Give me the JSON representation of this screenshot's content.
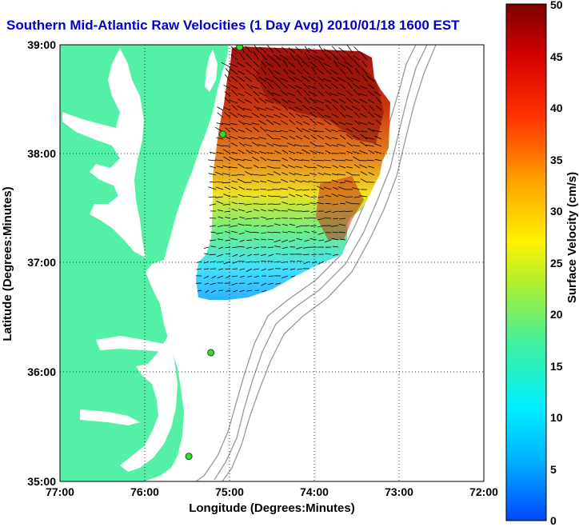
{
  "title": "Southern Mid-Atlantic Raw Velocities (1 Day Avg) 2010/01/18 1600 EST",
  "x_axis": {
    "label": "Longitude (Degrees:Minutes)",
    "ticks": [
      "77:00",
      "76:00",
      "75:00",
      "74:00",
      "73:00",
      "72:00"
    ]
  },
  "y_axis": {
    "label": "Latitude (Degrees:Minutes)",
    "ticks": [
      "39:00",
      "38:00",
      "37:00",
      "36:00",
      "35:00"
    ]
  },
  "colorbar": {
    "label": "Surface Velocity (cm/s)",
    "ticks": [
      "50",
      "45",
      "40",
      "35",
      "30",
      "25",
      "20",
      "15",
      "10",
      "5",
      "0"
    ],
    "min": 0,
    "max": 50
  },
  "colors": {
    "title": "#0000cc",
    "land": "#55f0a8",
    "water": "#ffffff",
    "isobath": "#999999"
  },
  "stations": [
    {
      "lon": -74.88,
      "lat": 38.98
    },
    {
      "lon": -75.08,
      "lat": 38.18
    },
    {
      "lon": -75.22,
      "lat": 36.18
    },
    {
      "lon": -75.48,
      "lat": 35.23
    }
  ]
}
